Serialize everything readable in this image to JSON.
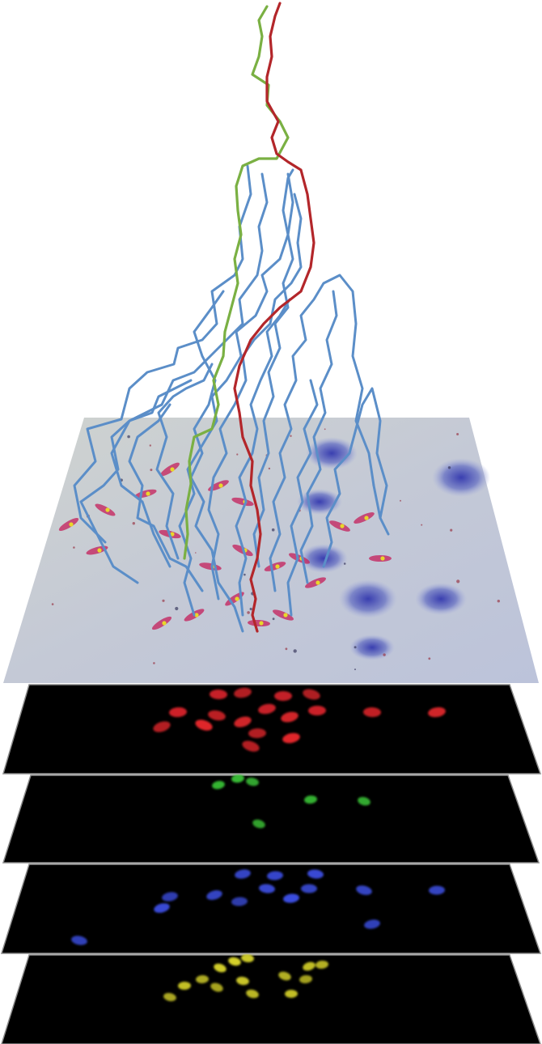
{
  "colors": {
    "background": "#ffffff",
    "brightfield": "#c9ccd2",
    "brightfield_tint": "#b7bfdc",
    "layer_black": "#000000",
    "layer_border": "#8a8a8a",
    "track_blue": "#5b8ec8",
    "track_green": "#7ab043",
    "track_red": "#b3262a",
    "cell_red": "#e3262c",
    "cell_green": "#3ed03a",
    "cell_blue": "#3c4ee0",
    "cell_yellow": "#d8d42a"
  },
  "layers": [
    {
      "name": "brightfield",
      "channel": "phase-contrast"
    },
    {
      "name": "red-channel",
      "channel": "red"
    },
    {
      "name": "green-channel",
      "channel": "green"
    },
    {
      "name": "blue-channel",
      "channel": "blue"
    },
    {
      "name": "yellow-channel",
      "channel": "yellow"
    }
  ],
  "tracks": [
    {
      "name": "green-track",
      "color": "green"
    },
    {
      "name": "red-track",
      "color": "red"
    },
    {
      "name": "blue-tracks",
      "color": "blue",
      "count": 14
    }
  ]
}
